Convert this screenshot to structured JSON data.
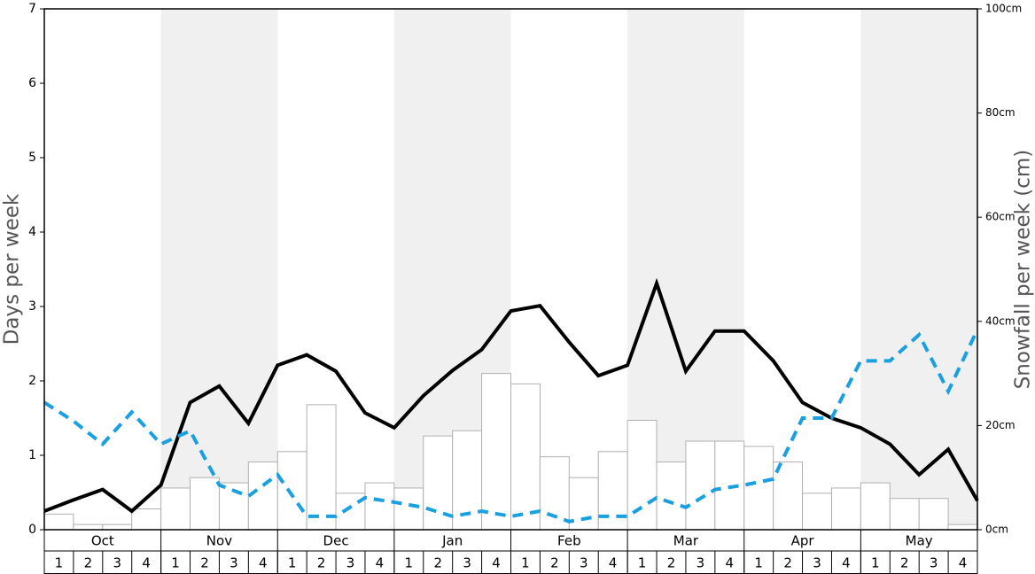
{
  "chart_data": [
    {
      "type": "bar",
      "months": [
        "Oct",
        "Nov",
        "Dec",
        "Jan",
        "Feb",
        "Mar",
        "Apr",
        "May"
      ],
      "categories": [
        1,
        2,
        3,
        4,
        1,
        2,
        3,
        4,
        1,
        2,
        3,
        4,
        1,
        2,
        3,
        4,
        1,
        2,
        3,
        4,
        1,
        2,
        3,
        4,
        1,
        2,
        3,
        4,
        1,
        2,
        3,
        4
      ],
      "values": [
        3,
        1,
        1,
        4,
        8,
        10,
        9,
        13,
        15,
        24,
        7,
        9,
        8,
        18,
        19,
        30,
        28,
        14,
        10,
        15,
        21,
        13,
        17,
        17,
        16,
        13,
        7,
        8,
        9,
        6,
        6,
        1
      ],
      "color": "#ffffff",
      "y2label": "Snowfall per week (cm)",
      "y2lim": [
        0,
        100
      ],
      "y2ticks": [
        {
          "value": 0,
          "label": "0cm"
        },
        {
          "value": 20,
          "label": "20cm"
        },
        {
          "value": 40,
          "label": "40cm"
        },
        {
          "value": 60,
          "label": "60cm"
        },
        {
          "value": 80,
          "label": "80cm"
        },
        {
          "value": 100,
          "label": "100cm"
        }
      ]
    },
    {
      "type": "line",
      "ylabel": "Days per week",
      "ylim": [
        0,
        7
      ],
      "yticks": [
        0,
        1,
        2,
        3,
        4,
        5,
        6,
        7
      ],
      "series": [
        {
          "color": "#000000",
          "dashed": false,
          "values": [
            0.25,
            0.4,
            0.54,
            0.25,
            0.6,
            1.71,
            1.93,
            1.43,
            2.21,
            2.35,
            2.13,
            1.57,
            1.37,
            1.8,
            2.14,
            2.42,
            2.94,
            3.01,
            2.52,
            2.07,
            2.21,
            3.31,
            2.13,
            2.67,
            2.67,
            2.27,
            1.71,
            1.5,
            1.37,
            1.15,
            0.74,
            1.08,
            0.39
          ]
        },
        {
          "color": "#1a9fe0",
          "dashed": true,
          "values": [
            1.71,
            1.46,
            1.15,
            1.58,
            1.15,
            1.33,
            0.6,
            0.45,
            0.74,
            0.18,
            0.18,
            0.43,
            0.37,
            0.3,
            0.18,
            0.25,
            0.18,
            0.25,
            0.11,
            0.18,
            0.18,
            0.43,
            0.3,
            0.54,
            0.6,
            0.68,
            1.5,
            1.5,
            2.27,
            2.27,
            2.62,
            1.86,
            2.69
          ]
        }
      ]
    }
  ]
}
